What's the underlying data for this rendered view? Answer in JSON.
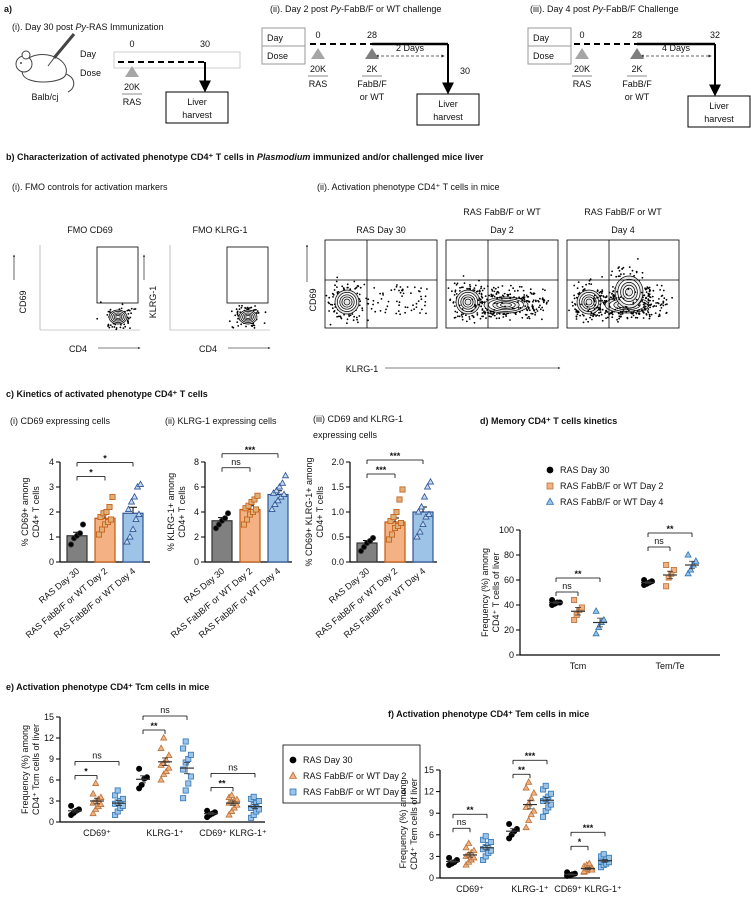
{
  "panel_a": {
    "label": "a)",
    "schedules": [
      {
        "title": [
          "(i). Day 30 post ",
          "Py",
          "-RAS Immunization"
        ],
        "strain": "Balb/cj",
        "day_label": "Day",
        "dose_label": "Dose",
        "days": [
          0,
          30
        ],
        "doses": [
          "20K"
        ],
        "agents": [
          [
            "RAS"
          ]
        ],
        "end": [
          "Liver",
          "harvest"
        ]
      },
      {
        "title": [
          "(ii). Day 2 post ",
          "Py",
          "-FabB/F or WT challenge"
        ],
        "day_label": "Day",
        "dose_label": "Dose",
        "days": [
          0,
          28,
          30
        ],
        "interval": "2 Days",
        "doses": [
          "20K",
          "2K"
        ],
        "agents": [
          [
            "RAS"
          ],
          [
            "FabB/F",
            "or WT"
          ]
        ],
        "end": [
          "Liver",
          "harvest"
        ]
      },
      {
        "title": [
          "(iii). Day 4 post ",
          "Py",
          "-FabB/F Challenge"
        ],
        "day_label": "Day",
        "dose_label": "Dose",
        "days": [
          0,
          28,
          32
        ],
        "interval": "4 Days",
        "doses": [
          "20K",
          "2K"
        ],
        "agents": [
          [
            "RAS"
          ],
          [
            "FabB/F",
            "or WT"
          ]
        ],
        "end": [
          "Liver",
          "harvest"
        ]
      }
    ]
  },
  "panel_b": {
    "title": [
      "b) Characterization of activated phenotype CD4⁺ T cells in ",
      "Plasmodium",
      " immunized and/or challenged mice liver"
    ],
    "fmo": {
      "subtitle": "(i). FMO controls for activation markers",
      "plots": [
        {
          "title": [
            "FMO CD69"
          ],
          "y_label": "CD69",
          "x_label": "CD4"
        },
        {
          "title": [
            "FMO KLRG-1"
          ],
          "y_label": "KLRG-1",
          "x_label": "CD4"
        }
      ]
    },
    "activation": {
      "subtitle": "(ii). Activation phenotype CD4⁺ T cells in mice",
      "y_label": "CD69",
      "x_label": "KLRG-1",
      "plots": [
        {
          "title": [
            "RAS Day 30"
          ]
        },
        {
          "title": [
            "RAS FabB/F or WT",
            "Day 2"
          ]
        },
        {
          "title": [
            "RAS FabB/F or WT",
            "Day 4"
          ]
        }
      ]
    }
  },
  "panel_c": {
    "title": "c) Kinetics of activated phenotype CD4⁺ T cells"
  },
  "chart_data": [
    {
      "type": "bar",
      "title": [
        "(i) CD69 expressing cells"
      ],
      "y_label": [
        "% CD69+ among",
        "CD4+ T cells"
      ],
      "categories": [
        "RAS Day 30",
        "RAS FabB/F or WT Day 2",
        "RAS FabB/F or WT Day 4"
      ],
      "values": [
        1.05,
        1.75,
        1.95
      ],
      "errors": [
        0.14,
        0.15,
        0.24
      ],
      "points": [
        [
          0.7,
          0.95,
          1.05,
          1.15,
          1.5
        ],
        [
          1.1,
          1.3,
          1.5,
          1.6,
          1.7,
          1.8,
          1.95,
          2.0,
          2.2,
          2.6
        ],
        [
          0.8,
          1.0,
          1.3,
          1.7,
          1.9,
          2.1,
          2.4,
          2.6,
          3.0,
          3.1
        ]
      ],
      "colors": [
        "#808080",
        "#f4b183",
        "#9dc3e6"
      ],
      "edge_colors": [
        "#333333",
        "#c55a11",
        "#2f5597"
      ],
      "point_colors": [
        "#000000",
        "#e0b07a",
        "#c5daf0"
      ],
      "markers": [
        "circle",
        "square",
        "triangle"
      ],
      "ylim": [
        0,
        4
      ],
      "yticks": [
        0,
        1,
        2,
        3,
        4
      ],
      "significance": [
        "*",
        "*"
      ]
    },
    {
      "type": "bar",
      "title": [
        "(ii) KLRG-1 expressing cells"
      ],
      "y_label": [
        "% KLRG-1+ among",
        "CD4+ T cells"
      ],
      "categories": [
        "RAS Day 30",
        "RAS FabB/F or WT Day 2",
        "RAS FabB/F or WT Day 4"
      ],
      "values": [
        3.3,
        4.2,
        5.4
      ],
      "errors": [
        0.25,
        0.3,
        0.3
      ],
      "points": [
        [
          2.7,
          3.0,
          3.3,
          3.5,
          3.9
        ],
        [
          3.0,
          3.4,
          3.8,
          4.0,
          4.2,
          4.3,
          4.5,
          4.8,
          5.0,
          5.3
        ],
        [
          4.2,
          4.6,
          4.9,
          5.2,
          5.4,
          5.5,
          5.7,
          6.0,
          6.3,
          6.9
        ]
      ],
      "colors": [
        "#808080",
        "#f4b183",
        "#9dc3e6"
      ],
      "edge_colors": [
        "#333333",
        "#c55a11",
        "#2f5597"
      ],
      "point_colors": [
        "#000000",
        "#e0b07a",
        "#c5daf0"
      ],
      "markers": [
        "circle",
        "square",
        "triangle"
      ],
      "ylim": [
        0,
        8
      ],
      "yticks": [
        0,
        2,
        4,
        6,
        8
      ],
      "significance": [
        "ns",
        "***"
      ]
    },
    {
      "type": "bar",
      "title": [
        "(iii) CD69 and KLRG-1",
        "expressing cells"
      ],
      "y_label": [
        "% CD69+ KLRG-1+ among",
        "CD4+ T cells"
      ],
      "categories": [
        "RAS Day 30",
        "RAS FabB/F or WT Day 2",
        "RAS FabB/F or WT Day 4"
      ],
      "values": [
        0.38,
        0.8,
        1.0
      ],
      "errors": [
        0.05,
        0.08,
        0.1
      ],
      "points": [
        [
          0.22,
          0.3,
          0.38,
          0.42,
          0.48
        ],
        [
          0.45,
          0.55,
          0.68,
          0.72,
          0.78,
          0.82,
          0.9,
          1.0,
          1.25,
          1.45
        ],
        [
          0.5,
          0.6,
          0.75,
          0.9,
          0.95,
          1.0,
          1.1,
          1.3,
          1.5,
          1.6
        ]
      ],
      "colors": [
        "#808080",
        "#f4b183",
        "#9dc3e6"
      ],
      "edge_colors": [
        "#333333",
        "#c55a11",
        "#2f5597"
      ],
      "point_colors": [
        "#000000",
        "#e0b07a",
        "#c5daf0"
      ],
      "markers": [
        "circle",
        "square",
        "triangle"
      ],
      "ylim": [
        0,
        2
      ],
      "yticks": [
        {
          "value": 0,
          "label": "0.0"
        },
        0.5,
        {
          "value": 1,
          "label": "1.0"
        },
        1.5,
        {
          "value": 2,
          "label": "2.0"
        }
      ],
      "significance": [
        "***",
        "***"
      ]
    },
    {
      "type": "scatter",
      "title": "d) Memory CD4⁺ T cells kinetics",
      "y_label": [
        "Frequency (%) among",
        "CD4⁺ T cells of liver"
      ],
      "categories": [
        "Tcm",
        "Tem/Te"
      ],
      "legend": "top",
      "series": [
        {
          "name": "RAS Day 30",
          "color": "#000000",
          "edge_color": "#000000",
          "marker": "circle",
          "values": [
            [
              40,
              41,
              42,
              42,
              44
            ],
            [
              56,
              57,
              58,
              59,
              60
            ]
          ],
          "means": [
            42,
            58
          ],
          "errors": [
            1,
            1
          ]
        },
        {
          "name": "RAS FabB/F or WT Day 2",
          "color": "#f4b183",
          "edge_color": "#b8733a",
          "marker": "square",
          "values": [
            [
              28,
              32,
              36,
              38,
              44
            ],
            [
              55,
              62,
              65,
              68,
              72
            ]
          ],
          "means": [
            35,
            64
          ],
          "errors": [
            3,
            3
          ]
        },
        {
          "name": "RAS FabB/F or WT Day 4",
          "color": "#9dc3e6",
          "edge_color": "#2e75b6",
          "marker": "triangle",
          "values": [
            [
              17,
              22,
              26,
              28,
              35
            ],
            [
              65,
              68,
              72,
              75,
              80
            ]
          ],
          "means": [
            26,
            72
          ],
          "errors": [
            3.5,
            3
          ]
        }
      ],
      "ylim": [
        0,
        100
      ],
      "yticks": [
        0,
        20,
        40,
        60,
        80,
        100
      ],
      "significance": [
        [
          "ns",
          "**"
        ],
        [
          "ns",
          "**"
        ]
      ]
    },
    {
      "type": "scatter",
      "title": "e) Activation phenotype CD4⁺ Tcm cells in mice",
      "y_label": [
        "Frequency (%) among",
        "CD4⁺ Tcm cells of liver"
      ],
      "categories": [
        "CD69⁺",
        "KLRG-1⁺",
        "CD69⁺ KLRG-1⁺"
      ],
      "legend": "right",
      "series": [
        {
          "name": "RAS Day 30",
          "color": "#000000",
          "edge_color": "#000000",
          "marker": "circle",
          "values": [
            [
              1.0,
              1.3,
              1.6,
              1.8,
              2.3
            ],
            [
              4.8,
              5.3,
              6.2,
              6.4,
              7.6
            ],
            [
              0.7,
              1.0,
              1.2,
              1.4,
              1.6
            ]
          ],
          "means": [
            1.6,
            6.1,
            1.2
          ],
          "errors": [
            0.2,
            0.5,
            0.15
          ]
        },
        {
          "name": "RAS FabB/F or WT Day 2",
          "color": "#f4b183",
          "edge_color": "#b8733a",
          "marker": "triangle",
          "values": [
            [
              1.2,
              1.8,
              2.2,
              2.5,
              2.7,
              2.9,
              3.2,
              3.5,
              4.0,
              5.5
            ],
            [
              6.0,
              6.8,
              7.2,
              7.7,
              8.1,
              8.4,
              8.8,
              9.5,
              10.5,
              12.0
            ],
            [
              1.0,
              1.5,
              2.0,
              2.4,
              2.7,
              2.9,
              3.0,
              3.2,
              3.5,
              3.8
            ]
          ],
          "means": [
            3.0,
            8.6,
            2.7
          ],
          "errors": [
            0.4,
            0.55,
            0.3
          ]
        },
        {
          "name": "RAS FabB/F or WT Day 4",
          "color": "#9dc3e6",
          "edge_color": "#2e75b6",
          "marker": "square",
          "values": [
            [
              1.0,
              1.5,
              2.0,
              2.3,
              2.6,
              2.8,
              3.0,
              3.3,
              3.8,
              4.5
            ],
            [
              3.4,
              4.5,
              5.5,
              6.5,
              7.5,
              8.5,
              9.0,
              9.6,
              10.5,
              11.5
            ],
            [
              0.6,
              1.0,
              1.5,
              1.8,
              2.0,
              2.4,
              2.7,
              3.0,
              3.3,
              3.6
            ]
          ],
          "means": [
            2.7,
            7.7,
            2.2
          ],
          "errors": [
            0.35,
            0.8,
            0.3
          ]
        }
      ],
      "ylim": [
        0,
        15
      ],
      "yticks": [
        0,
        3,
        6,
        9,
        12,
        15
      ],
      "significance": [
        [
          "*",
          "ns"
        ],
        [
          "**",
          "ns"
        ],
        [
          "**",
          "ns"
        ]
      ]
    },
    {
      "type": "scatter",
      "title": "f) Activation phenotype CD4⁺ Tem cells in mice",
      "y_label": [
        "Frequency (%) among",
        "CD4⁺ Tem cells of liver"
      ],
      "categories": [
        "CD69⁺",
        "KLRG-1⁺",
        "CD69⁺ KLRG-1⁺"
      ],
      "series": [
        {
          "color": "#000000",
          "edge_color": "#000000",
          "marker": "circle",
          "values": [
            [
              1.8,
              2.0,
              2.2,
              2.5,
              2.8
            ],
            [
              5.5,
              6.0,
              6.5,
              6.8,
              7.5
            ],
            [
              0.3,
              0.4,
              0.5,
              0.6,
              0.8
            ]
          ],
          "means": [
            2.3,
            6.5,
            0.5
          ],
          "errors": [
            0.2,
            0.35,
            0.08
          ]
        },
        {
          "color": "#f4b183",
          "edge_color": "#b8733a",
          "marker": "triangle",
          "values": [
            [
              1.8,
              2.2,
              2.5,
              2.8,
              3.0,
              3.2,
              3.5,
              3.8,
              4.2,
              4.8
            ],
            [
              7.0,
              8.0,
              8.8,
              9.3,
              9.8,
              10.3,
              11.0,
              11.8,
              12.5,
              13.3
            ],
            [
              0.8,
              1.0,
              1.2,
              1.4,
              1.6,
              1.8,
              2.0,
              1.1,
              0.9,
              1.3
            ]
          ],
          "means": [
            3.2,
            10.2,
            1.3
          ],
          "errors": [
            0.3,
            0.6,
            0.12
          ]
        },
        {
          "color": "#9dc3e6",
          "edge_color": "#2e75b6",
          "marker": "square",
          "values": [
            [
              2.5,
              3.0,
              3.5,
              3.8,
              4.0,
              4.3,
              4.6,
              5.0,
              5.3,
              5.8
            ],
            [
              8.5,
              9.3,
              9.8,
              10.2,
              10.7,
              11.0,
              11.3,
              11.7,
              12.3,
              12.8
            ],
            [
              1.5,
              1.8,
              2.0,
              2.2,
              2.3,
              2.5,
              2.6,
              2.8,
              3.0,
              3.3
            ]
          ],
          "means": [
            4.2,
            10.8,
            2.4
          ],
          "errors": [
            0.3,
            0.4,
            0.17
          ]
        }
      ],
      "ylim": [
        0,
        15
      ],
      "yticks": [
        0,
        3,
        6,
        9,
        12,
        15
      ],
      "significance": [
        [
          "ns",
          "**"
        ],
        [
          "**",
          "***"
        ],
        [
          "*",
          "***"
        ]
      ]
    }
  ]
}
